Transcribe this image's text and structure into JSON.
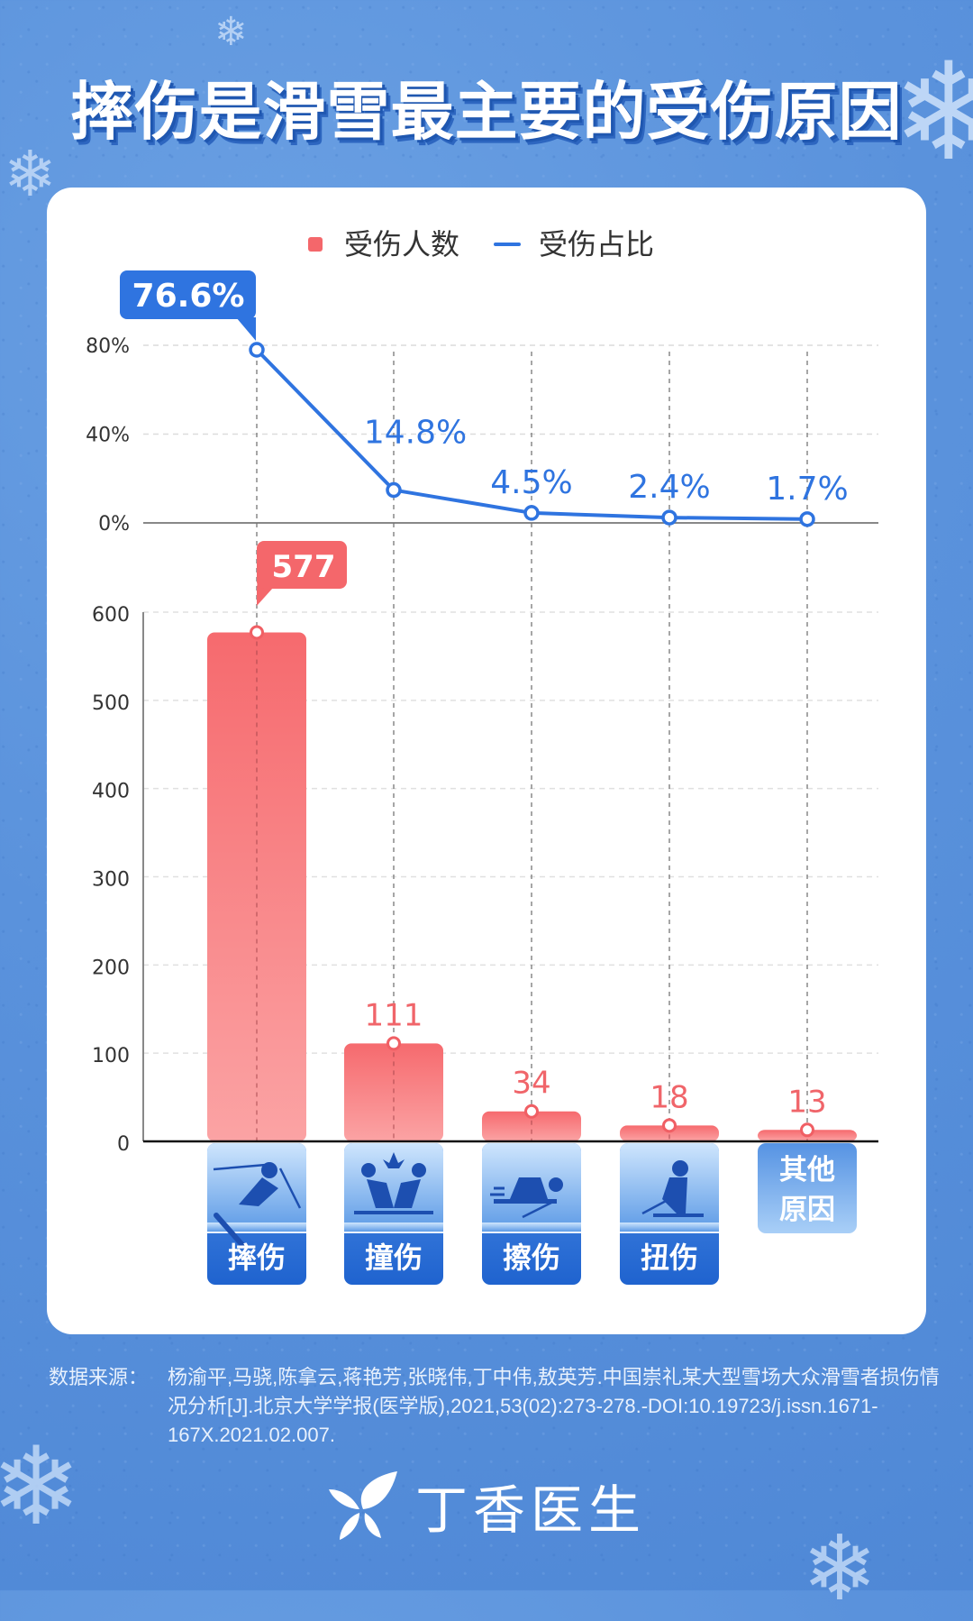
{
  "title": "摔伤是滑雪最主要的受伤原因",
  "legend": {
    "bar_label": "受伤人数",
    "line_label": "受伤占比",
    "bar_color": "#f4676b",
    "line_color": "#2f74e0"
  },
  "source": {
    "label": "数据来源：",
    "text": "杨渝平,马骁,陈拿云,蒋艳芳,张晓伟,丁中伟,敖英芳.中国崇礼某大型雪场大众滑雪者损伤情况分析[J].北京大学学报(医学版),2021,53(02):273-278.-DOI:10.19723/j.issn.1671-167X.2021.02.007."
  },
  "brand": {
    "name": "丁香医生"
  },
  "chart_data": {
    "type": "bar+line",
    "title": "摔伤是滑雪最主要的受伤原因",
    "categories": [
      "摔伤",
      "撞伤",
      "擦伤",
      "扭伤",
      "其他原因"
    ],
    "category_icons": [
      "skier-fall-icon",
      "skier-collision-icon",
      "skier-scrape-icon",
      "skier-sprain-icon",
      "none"
    ],
    "series": [
      {
        "name": "受伤人数",
        "type": "bar",
        "values": [
          577,
          111,
          34,
          18,
          13
        ],
        "labels": [
          "577",
          "111",
          "34",
          "18",
          "13"
        ]
      },
      {
        "name": "受伤占比",
        "type": "line",
        "values": [
          76.6,
          14.8,
          4.5,
          2.4,
          1.7
        ],
        "labels": [
          "76.6%",
          "14.8%",
          "4.5%",
          "2.4%",
          "1.7%"
        ]
      }
    ],
    "bar_axis": {
      "ticks": [
        "0",
        "100",
        "200",
        "300",
        "400",
        "500",
        "600"
      ],
      "ylim": [
        0,
        600
      ]
    },
    "line_axis": {
      "ticks": [
        "0%",
        "40%",
        "80%"
      ],
      "ylim": [
        0,
        80
      ]
    },
    "grid": true,
    "legend_position": "top"
  }
}
